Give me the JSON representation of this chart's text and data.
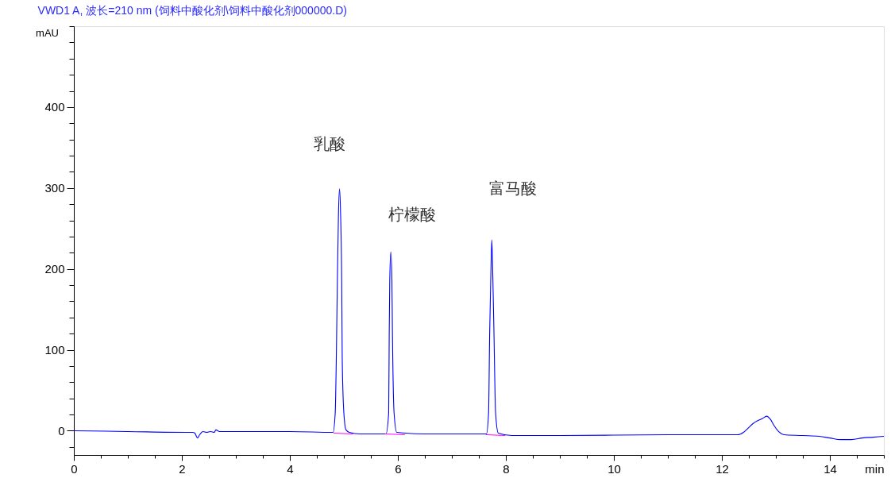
{
  "chart_data": {
    "type": "line",
    "title": "VWD1 A, 波长=210 nm (饲料中酸化剂\\饲料中酸化剂000000.D)",
    "xlabel": "min",
    "ylabel": "mAU",
    "xlim": [
      0,
      15
    ],
    "ylim": [
      -30,
      500
    ],
    "xticks": [
      0,
      {
        "value": 0.5,
        "label": null
      },
      {
        "value": 1,
        "label": null
      },
      {
        "value": 1.5,
        "label": null
      },
      2,
      {
        "value": 2.5,
        "label": null
      },
      {
        "value": 3,
        "label": null
      },
      {
        "value": 3.5,
        "label": null
      },
      4,
      {
        "value": 4.5,
        "label": null
      },
      {
        "value": 5,
        "label": null
      },
      {
        "value": 5.5,
        "label": null
      },
      6,
      {
        "value": 6.5,
        "label": null
      },
      {
        "value": 7,
        "label": null
      },
      {
        "value": 7.5,
        "label": null
      },
      8,
      {
        "value": 8.5,
        "label": null
      },
      {
        "value": 9,
        "label": null
      },
      {
        "value": 9.5,
        "label": null
      },
      10,
      {
        "value": 10.5,
        "label": null
      },
      {
        "value": 11,
        "label": null
      },
      {
        "value": 11.5,
        "label": null
      },
      12,
      {
        "value": 12.5,
        "label": null
      },
      {
        "value": 13,
        "label": null
      },
      {
        "value": 13.5,
        "label": null
      },
      14,
      {
        "value": 14.5,
        "label": null
      },
      {
        "value": 15,
        "label": null
      }
    ],
    "yticks": [
      {
        "value": -20,
        "label": null
      },
      0,
      {
        "value": 20,
        "label": null
      },
      {
        "value": 40,
        "label": null
      },
      {
        "value": 60,
        "label": null
      },
      {
        "value": 80,
        "label": null
      },
      100,
      {
        "value": 120,
        "label": null
      },
      {
        "value": 140,
        "label": null
      },
      {
        "value": 160,
        "label": null
      },
      {
        "value": 180,
        "label": null
      },
      200,
      {
        "value": 220,
        "label": null
      },
      {
        "value": 240,
        "label": null
      },
      {
        "value": 260,
        "label": null
      },
      {
        "value": 280,
        "label": null
      },
      300,
      {
        "value": 320,
        "label": null
      },
      {
        "value": 340,
        "label": null
      },
      {
        "value": 360,
        "label": null
      },
      {
        "value": 380,
        "label": null
      },
      400,
      {
        "value": 420,
        "label": null
      },
      {
        "value": 440,
        "label": null
      },
      {
        "value": 460,
        "label": null
      },
      {
        "value": 480,
        "label": null
      },
      {
        "value": 500,
        "label": null
      }
    ],
    "series": [
      {
        "color": "#0000ff",
        "x": [
          0,
          1.0,
          2.1,
          2.2,
          2.24,
          2.29,
          2.33,
          2.39,
          2.46,
          2.53,
          2.6,
          2.63,
          2.7,
          4.0,
          4.8,
          4.84,
          4.86,
          4.88,
          4.9,
          4.92,
          4.94,
          4.96,
          4.97,
          5.0,
          5.04,
          5.1,
          5.3,
          5.78,
          5.83,
          5.84,
          5.85,
          5.87,
          5.89,
          5.9,
          5.93,
          5.98,
          6.5,
          7.64,
          7.68,
          7.7,
          7.72,
          7.74,
          7.76,
          7.78,
          7.81,
          7.86,
          8.11,
          9.0,
          11.0,
          12.3,
          12.4,
          12.5,
          12.58,
          12.65,
          12.75,
          12.83,
          12.9,
          12.97,
          13.05,
          13.15,
          13.5,
          13.8,
          14.0,
          14.2,
          14.4,
          14.6,
          14.8,
          15.0
        ],
        "values": [
          0,
          -1,
          -2,
          -2,
          -3,
          -9,
          -5,
          -1,
          -2,
          -1,
          -2,
          1,
          -1,
          -1,
          -2,
          22,
          88,
          186,
          267,
          299,
          267,
          186,
          88,
          22,
          1,
          -2,
          -4,
          -4,
          22,
          120,
          186,
          221,
          186,
          120,
          22,
          -2,
          -4,
          -4,
          22,
          120,
          186,
          236,
          186,
          120,
          22,
          -3,
          -6,
          -6,
          -5,
          -5,
          -2,
          4,
          9,
          12,
          15,
          18,
          14,
          6,
          -1,
          -5,
          -6,
          -7,
          -9,
          -11,
          -11,
          -9,
          -8,
          -7
        ]
      },
      {
        "color": "#ff00ff",
        "x": [
          4.81,
          5.17,
          5.5,
          5.76,
          6.13,
          7.0,
          7.63,
          7.99
        ],
        "values": [
          -3,
          -4,
          null,
          -4,
          -5,
          null,
          -5,
          -6
        ]
      }
    ],
    "annotations": [
      {
        "text": "乳酸",
        "x": 4.92,
        "y": 299
      },
      {
        "text": "柠檬酸",
        "x": 5.87,
        "y": 221
      },
      {
        "text": "富马酸",
        "x": 7.74,
        "y": 236
      }
    ]
  }
}
